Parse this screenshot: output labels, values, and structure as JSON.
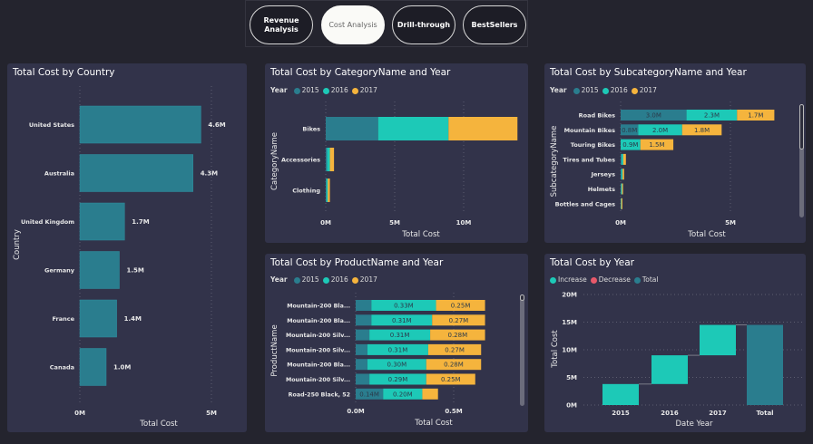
{
  "nav": {
    "buttons": [
      {
        "label": "Revenue\nAnalysis",
        "active": false
      },
      {
        "label": "Cost Analysis",
        "active": true
      },
      {
        "label": "Drill-through",
        "active": false
      },
      {
        "label": "BestSellers",
        "active": false
      }
    ]
  },
  "colors": {
    "c2015": "#2a7d8e",
    "c2016": "#1dc9b7",
    "c2017": "#f5b43d",
    "increase": "#1dc9b7",
    "decrease": "#e8596a",
    "total": "#2a7d8e",
    "country": "#2a7d8e"
  },
  "legend": {
    "title": "Year",
    "years": [
      "2015",
      "2016",
      "2017"
    ],
    "waterfall": [
      "Increase",
      "Decrease",
      "Total"
    ]
  },
  "chart_data": [
    {
      "id": "country",
      "type": "bar",
      "orientation": "horizontal",
      "title": "Total Cost by Country",
      "xlabel": "Total Cost",
      "ylabel": "Country",
      "categories": [
        "United States",
        "Australia",
        "United Kingdom",
        "Germany",
        "France",
        "Canada"
      ],
      "values": [
        4.6,
        4.3,
        1.7,
        1.5,
        1.4,
        1.0
      ],
      "data_labels": [
        "4.6M",
        "4.3M",
        "1.7M",
        "1.5M",
        "1.4M",
        "1.0M"
      ],
      "xticks": [
        "0M",
        "5M"
      ],
      "xtick_values": [
        0,
        5
      ],
      "units": "M",
      "grid": true
    },
    {
      "id": "category",
      "type": "bar",
      "orientation": "horizontal",
      "stacked": true,
      "title": "Total Cost by CategoryName and Year",
      "xlabel": "Total Cost",
      "ylabel": "CategoryName",
      "categories": [
        "Bikes",
        "Accessories",
        "Clothing"
      ],
      "series": [
        {
          "name": "2015",
          "values": [
            3.8,
            0.1,
            0.05
          ],
          "labels": [
            "",
            "",
            ""
          ]
        },
        {
          "name": "2016",
          "values": [
            5.1,
            0.2,
            0.1
          ],
          "labels": [
            "",
            "",
            ""
          ]
        },
        {
          "name": "2017",
          "values": [
            5.0,
            0.3,
            0.15
          ],
          "labels": [
            "",
            "",
            ""
          ]
        }
      ],
      "xticks": [
        "0M",
        "5M",
        "10M"
      ],
      "xtick_values": [
        0,
        5,
        10
      ],
      "legend": "top-left",
      "grid": true
    },
    {
      "id": "subcategory",
      "type": "bar",
      "orientation": "horizontal",
      "stacked": true,
      "title": "Total Cost by SubcategoryName and Year",
      "xlabel": "Total Cost",
      "ylabel": "SubcategoryName",
      "categories": [
        "Road Bikes",
        "Mountain Bikes",
        "Touring Bikes",
        "Tires and Tubes",
        "Jerseys",
        "Helmets",
        "Bottles and Cages"
      ],
      "series": [
        {
          "name": "2015",
          "values": [
            3.0,
            0.8,
            0,
            0.04,
            0.03,
            0.02,
            0.01
          ],
          "labels": [
            "3.0M",
            "0.8M",
            "",
            "",
            "",
            "",
            ""
          ]
        },
        {
          "name": "2016",
          "values": [
            2.3,
            2.0,
            0.9,
            0.08,
            0.06,
            0.04,
            0.02
          ],
          "labels": [
            "2.3M",
            "2.0M",
            "0.9M",
            "",
            "",
            "",
            ""
          ]
        },
        {
          "name": "2017",
          "values": [
            1.7,
            1.8,
            1.5,
            0.12,
            0.07,
            0.05,
            0.03
          ],
          "labels": [
            "1.7M",
            "1.8M",
            "1.5M",
            "",
            "",
            "",
            ""
          ]
        }
      ],
      "xticks": [
        "0M",
        "5M"
      ],
      "xtick_values": [
        0,
        5
      ],
      "legend": "top-left",
      "grid": true
    },
    {
      "id": "product",
      "type": "bar",
      "orientation": "horizontal",
      "stacked": true,
      "title": "Total Cost by ProductName and Year",
      "xlabel": "Total Cost",
      "ylabel": "ProductName",
      "categories": [
        "Mountain-200 Bla...",
        "Mountain-200 Bla...",
        "Mountain-200 Silv...",
        "Mountain-200 Silv...",
        "Mountain-200 Bla...",
        "Mountain-200 Silv...",
        "Road-250 Black, 52"
      ],
      "series": [
        {
          "name": "2015",
          "values": [
            0.08,
            0.08,
            0.07,
            0.06,
            0.06,
            0.07,
            0.14
          ],
          "labels": [
            "",
            "",
            "",
            "",
            "",
            "",
            "0.14M"
          ]
        },
        {
          "name": "2016",
          "values": [
            0.33,
            0.31,
            0.31,
            0.31,
            0.3,
            0.29,
            0.2
          ],
          "labels": [
            "0.33M",
            "0.31M",
            "0.31M",
            "0.31M",
            "0.30M",
            "0.29M",
            "0.20M"
          ]
        },
        {
          "name": "2017",
          "values": [
            0.25,
            0.27,
            0.28,
            0.27,
            0.28,
            0.25,
            0.08
          ],
          "labels": [
            "0.25M",
            "0.27M",
            "0.28M",
            "0.27M",
            "0.28M",
            "0.25M",
            ""
          ]
        }
      ],
      "xticks": [
        "0.0M",
        "0.5M"
      ],
      "xtick_values": [
        0,
        0.5
      ],
      "legend": "top-left",
      "grid": true
    },
    {
      "id": "year",
      "type": "waterfall",
      "title": "Total Cost by Year",
      "xlabel": "Date Year",
      "ylabel": "Total Cost",
      "categories": [
        "2015",
        "2016",
        "2017",
        "Total"
      ],
      "values": [
        3.8,
        5.2,
        5.5,
        14.5
      ],
      "kinds": [
        "increase",
        "increase",
        "increase",
        "total"
      ],
      "yticks": [
        "0M",
        "5M",
        "10M",
        "15M",
        "20M"
      ],
      "ytick_values": [
        0,
        5,
        10,
        15,
        20
      ],
      "ylim": [
        0,
        20
      ],
      "legend": "top-left",
      "grid": true
    }
  ]
}
